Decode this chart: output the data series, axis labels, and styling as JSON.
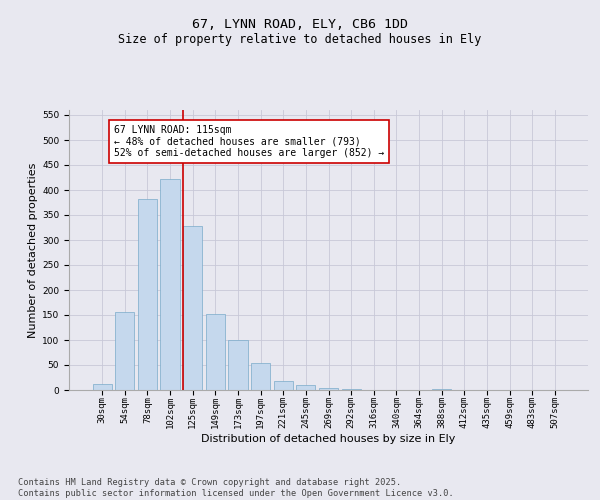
{
  "title": "67, LYNN ROAD, ELY, CB6 1DD",
  "subtitle": "Size of property relative to detached houses in Ely",
  "xlabel": "Distribution of detached houses by size in Ely",
  "ylabel": "Number of detached properties",
  "categories": [
    "30sqm",
    "54sqm",
    "78sqm",
    "102sqm",
    "125sqm",
    "149sqm",
    "173sqm",
    "197sqm",
    "221sqm",
    "245sqm",
    "269sqm",
    "292sqm",
    "316sqm",
    "340sqm",
    "364sqm",
    "388sqm",
    "412sqm",
    "435sqm",
    "459sqm",
    "483sqm",
    "507sqm"
  ],
  "values": [
    13,
    157,
    383,
    422,
    328,
    153,
    101,
    55,
    18,
    10,
    5,
    2,
    1,
    0,
    0,
    2,
    0,
    0,
    1,
    0,
    1
  ],
  "bar_color": "#c5d8ed",
  "bar_edge_color": "#7aaaca",
  "grid_color": "#c8c8d8",
  "background_color": "#e8e8f0",
  "vline_color": "#cc0000",
  "vline_pos": 3.55,
  "annotation_text": "67 LYNN ROAD: 115sqm\n← 48% of detached houses are smaller (793)\n52% of semi-detached houses are larger (852) →",
  "annotation_box_color": "#ffffff",
  "annotation_box_edge": "#cc0000",
  "ylim": [
    0,
    560
  ],
  "yticks": [
    0,
    50,
    100,
    150,
    200,
    250,
    300,
    350,
    400,
    450,
    500,
    550
  ],
  "footnote": "Contains HM Land Registry data © Crown copyright and database right 2025.\nContains public sector information licensed under the Open Government Licence v3.0.",
  "title_fontsize": 9.5,
  "subtitle_fontsize": 8.5,
  "axis_label_fontsize": 8,
  "tick_fontsize": 6.5,
  "annotation_fontsize": 7,
  "footnote_fontsize": 6.2
}
